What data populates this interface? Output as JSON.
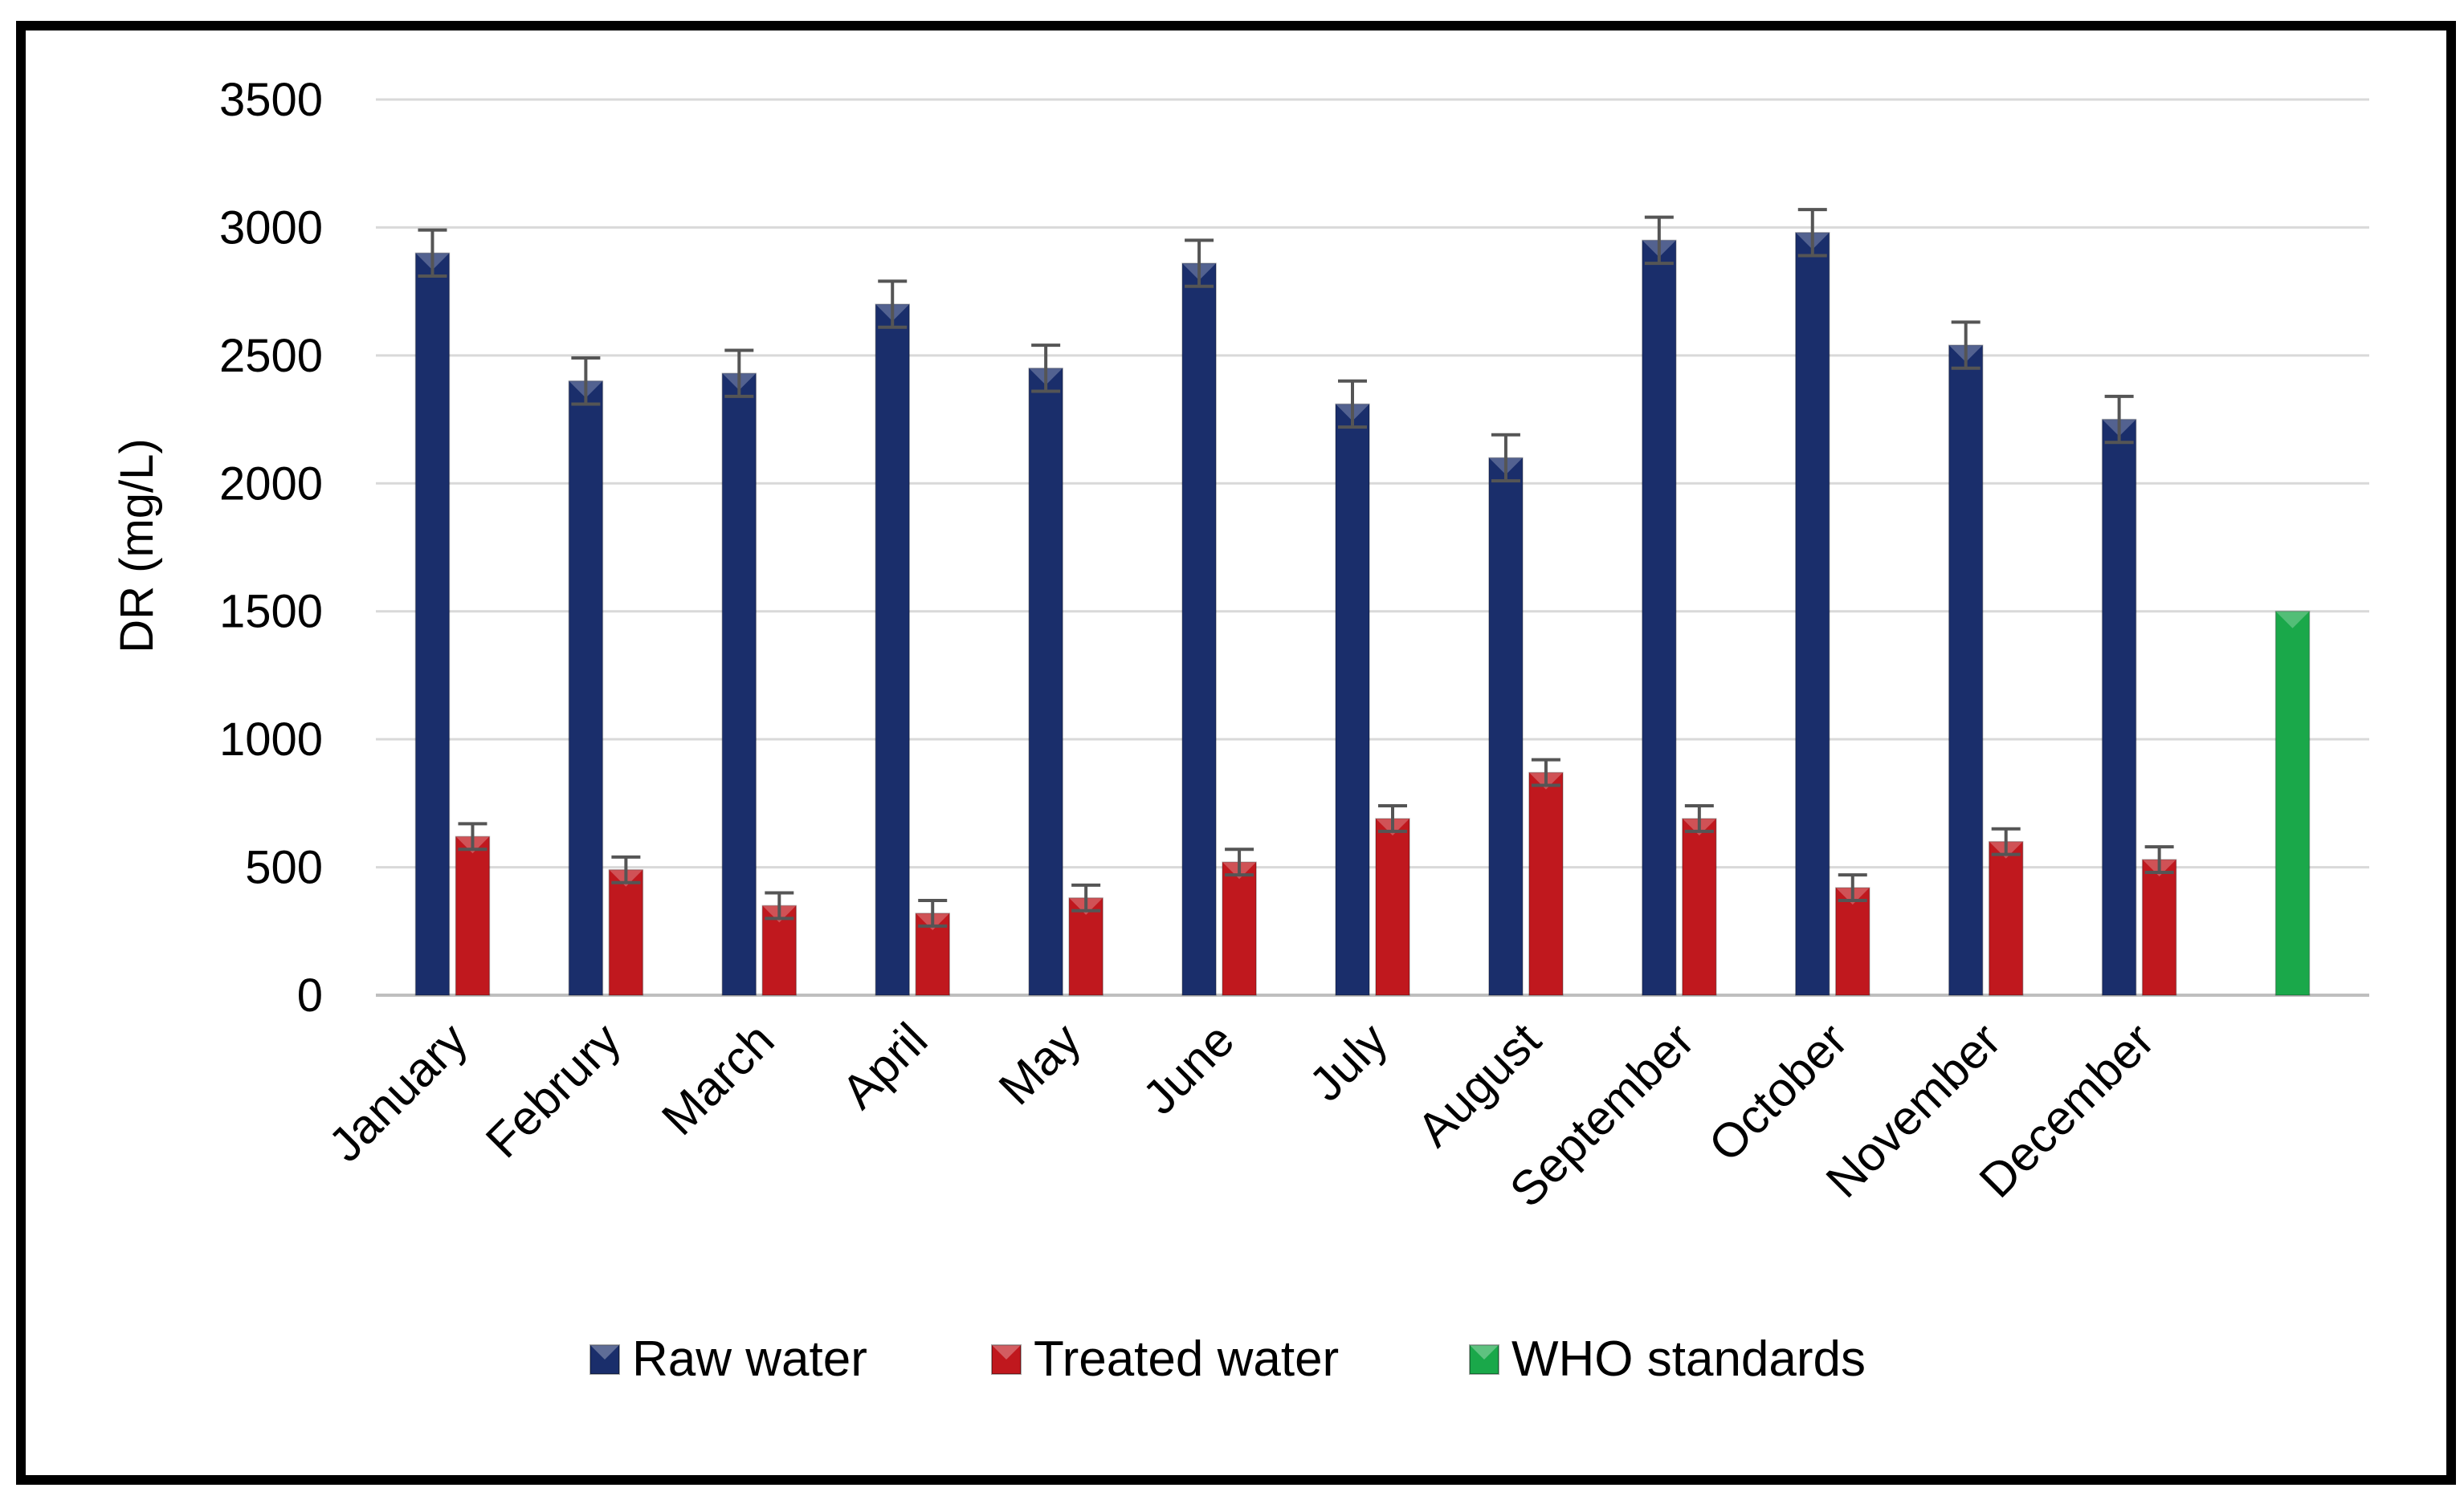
{
  "chart_data": {
    "type": "bar",
    "title": "",
    "xlabel": "",
    "ylabel": "DR (mg/L)",
    "ylim": [
      0,
      3500
    ],
    "yticks": [
      0,
      500,
      1000,
      1500,
      2000,
      2500,
      3000,
      3500
    ],
    "ytick_labels": [
      "0",
      "500",
      "1000",
      "1500",
      "2000",
      "2500",
      "3000",
      "3500"
    ],
    "grid": true,
    "legend_position": "bottom",
    "categories": [
      "January",
      "Februry",
      "March",
      "April",
      "May",
      "June",
      "July",
      "August",
      "September",
      "October",
      "November",
      "December",
      ""
    ],
    "series": [
      {
        "name": "Raw water",
        "color": "#1a2e6b",
        "values": [
          2900,
          2400,
          2430,
          2700,
          2450,
          2860,
          2310,
          2100,
          2950,
          2980,
          2540,
          2250,
          null
        ],
        "errors": [
          90,
          90,
          90,
          90,
          90,
          90,
          90,
          90,
          90,
          90,
          90,
          90,
          null
        ]
      },
      {
        "name": "Treated water",
        "color": "#c0181e",
        "values": [
          620,
          490,
          350,
          320,
          380,
          520,
          690,
          870,
          690,
          420,
          600,
          530,
          null
        ],
        "errors": [
          50,
          50,
          50,
          50,
          50,
          50,
          50,
          50,
          50,
          50,
          50,
          50,
          null
        ]
      },
      {
        "name": "WHO standards",
        "color": "#1aa84a",
        "values": [
          null,
          null,
          null,
          null,
          null,
          null,
          null,
          null,
          null,
          null,
          null,
          null,
          1500
        ],
        "errors": [
          null,
          null,
          null,
          null,
          null,
          null,
          null,
          null,
          null,
          null,
          null,
          null,
          null
        ]
      }
    ]
  }
}
